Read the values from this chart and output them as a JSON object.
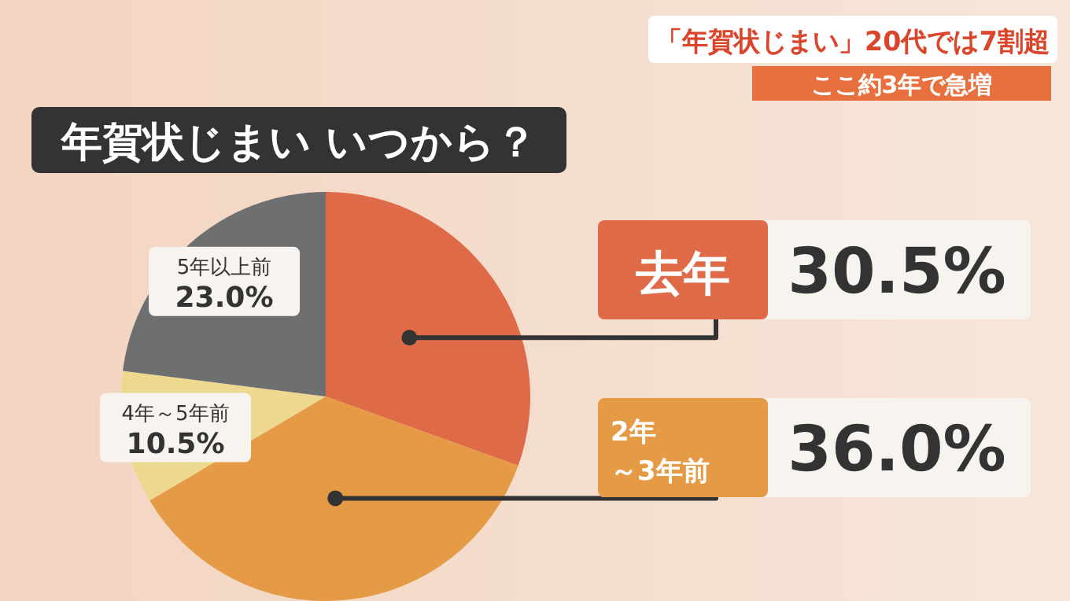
{
  "chart_data": {
    "type": "pie",
    "title": "年賀状じまい いつから？",
    "subtitle": "「年賀状じまい」20代では7割超",
    "annotations": [
      "ここ約3年で急増"
    ],
    "categories": [
      "去年",
      "2年～3年前",
      "4年～5年前",
      "5年以上前"
    ],
    "values": [
      30.5,
      36.0,
      10.5,
      23.0
    ],
    "value_labels": [
      "30.5%",
      "36.0%",
      "10.5%",
      "23.0%"
    ],
    "colors": [
      "#de6a48",
      "#e59a45",
      "#ecd98f",
      "#6e6f70"
    ]
  }
}
